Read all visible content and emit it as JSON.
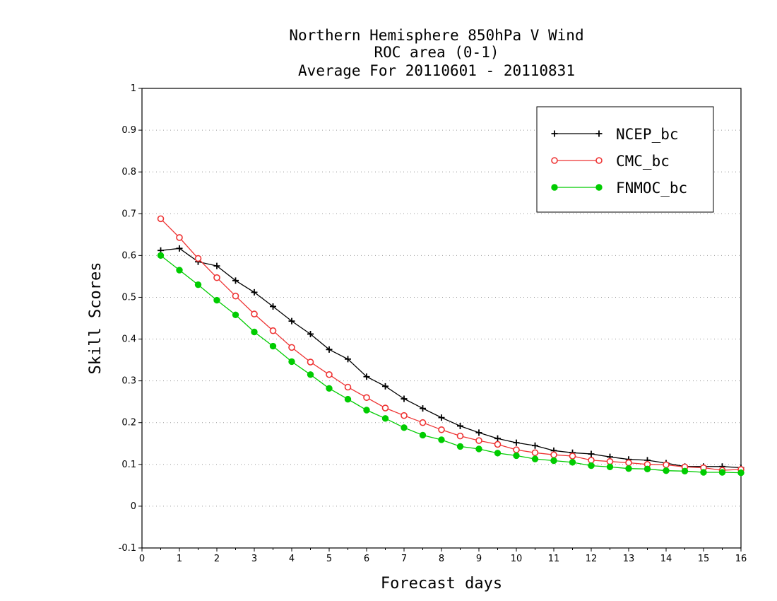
{
  "chart_data": {
    "type": "line",
    "title_lines": [
      "Northern Hemisphere 850hPa V Wind",
      "ROC area (0-1)",
      "Average For 20110601 - 20110831"
    ],
    "xlabel": "Forecast days",
    "ylabel": "Skill Scores",
    "xlim": [
      0,
      16
    ],
    "ylim": [
      -0.1,
      1
    ],
    "x_ticks": [
      0,
      1,
      2,
      3,
      4,
      5,
      6,
      7,
      8,
      9,
      10,
      11,
      12,
      13,
      14,
      15,
      16
    ],
    "y_ticks": [
      -0.1,
      0,
      0.1,
      0.2,
      0.3,
      0.4,
      0.5,
      0.6,
      0.7,
      0.8,
      0.9,
      1
    ],
    "y_tick_labels": [
      "-0.1",
      "0",
      "0.1",
      "0.2",
      "0.3",
      "0.4",
      "0.5",
      "0.6",
      "0.7",
      "0.8",
      "0.9",
      "1"
    ],
    "grid": "horizontal dotted",
    "legend_position": "top-right",
    "x": [
      0.5,
      1.0,
      1.5,
      2.0,
      2.5,
      3.0,
      3.5,
      4.0,
      4.5,
      5.0,
      5.5,
      6.0,
      6.5,
      7.0,
      7.5,
      8.0,
      8.5,
      9.0,
      9.5,
      10.0,
      10.5,
      11.0,
      11.5,
      12.0,
      12.5,
      13.0,
      13.5,
      14.0,
      14.5,
      15.0,
      15.5,
      16.0
    ],
    "series": [
      {
        "name": "NCEP_bc",
        "color": "#000000",
        "marker": "plus",
        "values": [
          0.612,
          0.617,
          0.585,
          0.575,
          0.54,
          0.512,
          0.478,
          0.443,
          0.412,
          0.375,
          0.352,
          0.31,
          0.287,
          0.257,
          0.234,
          0.212,
          0.192,
          0.176,
          0.162,
          0.152,
          0.145,
          0.133,
          0.128,
          0.125,
          0.118,
          0.112,
          0.11,
          0.103,
          0.095,
          0.095,
          0.095,
          0.092
        ]
      },
      {
        "name": "CMC_bc",
        "color": "#ee3333",
        "marker": "open-circle",
        "values": [
          0.688,
          0.643,
          0.593,
          0.547,
          0.503,
          0.46,
          0.42,
          0.38,
          0.345,
          0.315,
          0.285,
          0.26,
          0.235,
          0.217,
          0.2,
          0.183,
          0.168,
          0.157,
          0.148,
          0.135,
          0.128,
          0.123,
          0.12,
          0.11,
          0.107,
          0.104,
          0.1,
          0.099,
          0.094,
          0.092,
          0.086,
          0.088
        ]
      },
      {
        "name": "FNMOC_bc",
        "color": "#00cc00",
        "marker": "filled-circle",
        "values": [
          0.6,
          0.565,
          0.53,
          0.493,
          0.458,
          0.417,
          0.383,
          0.346,
          0.315,
          0.282,
          0.256,
          0.23,
          0.21,
          0.188,
          0.17,
          0.159,
          0.143,
          0.137,
          0.127,
          0.121,
          0.113,
          0.109,
          0.105,
          0.097,
          0.094,
          0.09,
          0.089,
          0.085,
          0.084,
          0.081,
          0.081,
          0.08
        ]
      }
    ]
  }
}
